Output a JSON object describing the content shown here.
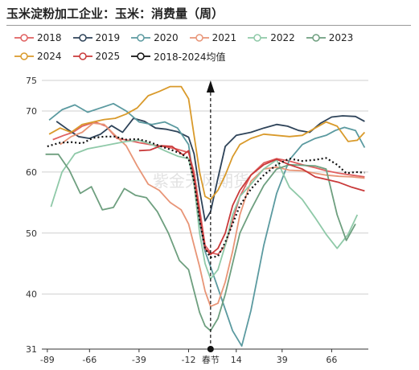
{
  "title": "玉米淀粉加工企业：玉米：消费量（周）",
  "watermark": "紫金天风期货",
  "chart_data": {
    "type": "line",
    "x_tick_labels": [
      "-89",
      "-66",
      "-39",
      "-12",
      "春节",
      "14",
      "39",
      "66"
    ],
    "x_tick_values": [
      -89,
      -66,
      -39,
      -12,
      0,
      14,
      39,
      66
    ],
    "xlim": [
      -92,
      86
    ],
    "y_tick_labels": [
      "31",
      "40",
      "50",
      "60",
      "70",
      "75"
    ],
    "y_tick_values": [
      31,
      40,
      50,
      60,
      70,
      75
    ],
    "ylim": [
      31,
      75
    ],
    "marker_x": 0,
    "series": [
      {
        "name": "2018",
        "color": "#e06060",
        "points": [
          [
            -86,
            65.3
          ],
          [
            -80,
            66
          ],
          [
            -75,
            66.5
          ],
          [
            -70,
            67.5
          ],
          [
            -63,
            68.2
          ],
          [
            -57,
            67.5
          ],
          [
            -51,
            65.5
          ],
          [
            -45,
            65.2
          ],
          [
            -39,
            64.8
          ],
          [
            -33,
            64.5
          ],
          [
            -26,
            64.2
          ],
          [
            -19,
            63.8
          ],
          [
            -12,
            63.2
          ],
          [
            -9,
            60
          ],
          [
            -6,
            54
          ],
          [
            -3,
            48
          ],
          [
            0,
            46.8
          ],
          [
            4,
            46.5
          ],
          [
            8,
            48
          ],
          [
            12,
            52
          ],
          [
            16,
            56
          ],
          [
            22,
            59.5
          ],
          [
            29,
            61.5
          ],
          [
            36,
            62.2
          ],
          [
            43,
            61.8
          ],
          [
            50,
            61.2
          ],
          [
            57,
            60.7
          ],
          [
            63,
            60.2
          ],
          [
            70,
            59.8
          ],
          [
            77,
            59.5
          ],
          [
            84,
            59.2
          ]
        ]
      },
      {
        "name": "2019",
        "color": "#2e4359",
        "points": [
          [
            -84,
            68.3
          ],
          [
            -78,
            67
          ],
          [
            -72,
            65.8
          ],
          [
            -66,
            65.5
          ],
          [
            -60,
            66.2
          ],
          [
            -54,
            67.6
          ],
          [
            -48,
            66.5
          ],
          [
            -42,
            68.8
          ],
          [
            -36,
            68.3
          ],
          [
            -30,
            67.2
          ],
          [
            -24,
            67
          ],
          [
            -18,
            66.6
          ],
          [
            -12,
            65.7
          ],
          [
            -9,
            63
          ],
          [
            -6,
            57
          ],
          [
            -3,
            52
          ],
          [
            0,
            53.5
          ],
          [
            4,
            59
          ],
          [
            8,
            64.2
          ],
          [
            14,
            66
          ],
          [
            22,
            66.5
          ],
          [
            29,
            67.2
          ],
          [
            36,
            67.8
          ],
          [
            42,
            67.5
          ],
          [
            48,
            66.8
          ],
          [
            54,
            66.5
          ],
          [
            60,
            68
          ],
          [
            66,
            69
          ],
          [
            72,
            69.2
          ],
          [
            79,
            69.1
          ],
          [
            84,
            68.3
          ]
        ]
      },
      {
        "name": "2020",
        "color": "#5b9aa0",
        "points": [
          [
            -88,
            68.5
          ],
          [
            -81,
            70.2
          ],
          [
            -74,
            71
          ],
          [
            -67,
            69.8
          ],
          [
            -60,
            70.5
          ],
          [
            -53,
            71.2
          ],
          [
            -46,
            70
          ],
          [
            -39,
            68.2
          ],
          [
            -32,
            67.8
          ],
          [
            -25,
            68.2
          ],
          [
            -18,
            67.2
          ],
          [
            -12,
            64.5
          ],
          [
            -9,
            58
          ],
          [
            -6,
            52
          ],
          [
            -3,
            47
          ],
          [
            0,
            44.5
          ],
          [
            4,
            41
          ],
          [
            8,
            37.5
          ],
          [
            12,
            34
          ],
          [
            17,
            31.5
          ],
          [
            22,
            37.3
          ],
          [
            29,
            48
          ],
          [
            36,
            56.5
          ],
          [
            43,
            62
          ],
          [
            50,
            64.5
          ],
          [
            57,
            65.5
          ],
          [
            63,
            66
          ],
          [
            68,
            66.8
          ],
          [
            73,
            67.3
          ],
          [
            79,
            66.8
          ],
          [
            84,
            64
          ]
        ]
      },
      {
        "name": "2021",
        "color": "#e89577",
        "points": [
          [
            -82,
            64.5
          ],
          [
            -76,
            65.8
          ],
          [
            -70,
            66.5
          ],
          [
            -64,
            68
          ],
          [
            -58,
            67.8
          ],
          [
            -52,
            66
          ],
          [
            -46,
            64.3
          ],
          [
            -40,
            61
          ],
          [
            -34,
            58
          ],
          [
            -28,
            57
          ],
          [
            -22,
            55
          ],
          [
            -16,
            53.8
          ],
          [
            -12,
            51.5
          ],
          [
            -9,
            48
          ],
          [
            -6,
            44.5
          ],
          [
            -3,
            40.5
          ],
          [
            0,
            38
          ],
          [
            4,
            38.5
          ],
          [
            8,
            42
          ],
          [
            12,
            47
          ],
          [
            16,
            53
          ],
          [
            22,
            58.5
          ],
          [
            29,
            60.5
          ],
          [
            36,
            60.8
          ],
          [
            43,
            60.3
          ],
          [
            50,
            60.2
          ],
          [
            57,
            59.8
          ],
          [
            63,
            59.5
          ],
          [
            70,
            59.3
          ],
          [
            77,
            59.2
          ],
          [
            84,
            59
          ]
        ]
      },
      {
        "name": "2022",
        "color": "#8fc9a8",
        "points": [
          [
            -87,
            54.3
          ],
          [
            -81,
            60
          ],
          [
            -74,
            63
          ],
          [
            -67,
            63.8
          ],
          [
            -60,
            64.2
          ],
          [
            -53,
            64.6
          ],
          [
            -46,
            65
          ],
          [
            -39,
            65.2
          ],
          [
            -32,
            64.5
          ],
          [
            -25,
            63.5
          ],
          [
            -18,
            62.6
          ],
          [
            -12,
            62.2
          ],
          [
            -9,
            58
          ],
          [
            -6,
            50
          ],
          [
            -3,
            45
          ],
          [
            0,
            42.5
          ],
          [
            4,
            44
          ],
          [
            8,
            48
          ],
          [
            12,
            53
          ],
          [
            16,
            56
          ],
          [
            22,
            58
          ],
          [
            29,
            60.5
          ],
          [
            36,
            62
          ],
          [
            43,
            57.5
          ],
          [
            50,
            55.5
          ],
          [
            57,
            52.5
          ],
          [
            63,
            49.8
          ],
          [
            69,
            47.5
          ],
          [
            75,
            49.8
          ],
          [
            80,
            53
          ]
        ]
      },
      {
        "name": "2023",
        "color": "#6e9f7f",
        "points": [
          [
            -90,
            62.9
          ],
          [
            -83,
            62.9
          ],
          [
            -77,
            60.3
          ],
          [
            -71,
            56.5
          ],
          [
            -65,
            57.6
          ],
          [
            -59,
            53.8
          ],
          [
            -53,
            54.2
          ],
          [
            -47,
            57.3
          ],
          [
            -41,
            56.2
          ],
          [
            -35,
            55.8
          ],
          [
            -29,
            53.5
          ],
          [
            -23,
            50
          ],
          [
            -17,
            45.5
          ],
          [
            -12,
            44
          ],
          [
            -9,
            40.5
          ],
          [
            -6,
            37
          ],
          [
            -3,
            34.8
          ],
          [
            0,
            34
          ],
          [
            4,
            36
          ],
          [
            8,
            40
          ],
          [
            12,
            45
          ],
          [
            16,
            50
          ],
          [
            22,
            53.8
          ],
          [
            29,
            57.8
          ],
          [
            36,
            60.5
          ],
          [
            43,
            61.2
          ],
          [
            50,
            61.1
          ],
          [
            57,
            61
          ],
          [
            63,
            60.5
          ],
          [
            69,
            53
          ],
          [
            74,
            48.8
          ],
          [
            79,
            51.5
          ]
        ]
      },
      {
        "name": "2024",
        "color": "#d99a2b",
        "points": [
          [
            -88,
            66.2
          ],
          [
            -82,
            67.2
          ],
          [
            -76,
            66.5
          ],
          [
            -70,
            67.8
          ],
          [
            -64,
            68.2
          ],
          [
            -58,
            68.6
          ],
          [
            -52,
            68.8
          ],
          [
            -46,
            69.5
          ],
          [
            -40,
            70.5
          ],
          [
            -34,
            72.5
          ],
          [
            -28,
            73.2
          ],
          [
            -22,
            74
          ],
          [
            -16,
            74
          ],
          [
            -12,
            72
          ],
          [
            -9,
            66
          ],
          [
            -6,
            60
          ],
          [
            -3,
            56
          ],
          [
            0,
            55.5
          ],
          [
            4,
            57
          ],
          [
            8,
            59.5
          ],
          [
            12,
            62.5
          ],
          [
            16,
            64.5
          ],
          [
            22,
            65.5
          ],
          [
            29,
            66.2
          ],
          [
            36,
            66
          ],
          [
            43,
            65.8
          ],
          [
            50,
            66
          ],
          [
            57,
            67.2
          ],
          [
            63,
            68.2
          ],
          [
            69,
            67.5
          ],
          [
            75,
            65
          ],
          [
            80,
            65.2
          ],
          [
            84,
            66.5
          ]
        ]
      },
      {
        "name": "2025",
        "color": "#c93a3a",
        "points": [
          [
            -39,
            63.5
          ],
          [
            -33,
            63.6
          ],
          [
            -27,
            64.3
          ],
          [
            -21,
            64.2
          ],
          [
            -15,
            62.8
          ],
          [
            -12,
            63.5
          ],
          [
            -9,
            59
          ],
          [
            -6,
            53
          ],
          [
            -3,
            47.5
          ],
          [
            0,
            46.5
          ],
          [
            4,
            47.5
          ],
          [
            8,
            50
          ],
          [
            12,
            54.5
          ],
          [
            16,
            57
          ],
          [
            22,
            59.5
          ],
          [
            29,
            61.2
          ],
          [
            36,
            62.1
          ],
          [
            43,
            61.2
          ],
          [
            50,
            60.5
          ],
          [
            57,
            59.2
          ],
          [
            63,
            58.8
          ],
          [
            70,
            58.3
          ],
          [
            77,
            57.5
          ],
          [
            84,
            56.9
          ]
        ]
      },
      {
        "name": "2018-2024均值",
        "color": "#111111",
        "dashed": true,
        "points": [
          [
            -89,
            64.2
          ],
          [
            -82,
            64.8
          ],
          [
            -76,
            64.9
          ],
          [
            -70,
            64.7
          ],
          [
            -64,
            65.6
          ],
          [
            -58,
            65.8
          ],
          [
            -52,
            65.8
          ],
          [
            -46,
            65.3
          ],
          [
            -40,
            65.4
          ],
          [
            -34,
            65
          ],
          [
            -28,
            64.3
          ],
          [
            -22,
            63.7
          ],
          [
            -16,
            63
          ],
          [
            -12,
            62.2
          ],
          [
            -9,
            58.5
          ],
          [
            -6,
            52
          ],
          [
            -3,
            47.5
          ],
          [
            0,
            46
          ],
          [
            4,
            46.2
          ],
          [
            8,
            48.5
          ],
          [
            12,
            51.5
          ],
          [
            16,
            54.5
          ],
          [
            22,
            57.2
          ],
          [
            29,
            59.5
          ],
          [
            36,
            61.2
          ],
          [
            43,
            62.2
          ],
          [
            50,
            61.8
          ],
          [
            57,
            62
          ],
          [
            63,
            62.3
          ],
          [
            69,
            61.2
          ],
          [
            74,
            59.8
          ],
          [
            79,
            60
          ],
          [
            84,
            59.9
          ]
        ]
      }
    ]
  }
}
